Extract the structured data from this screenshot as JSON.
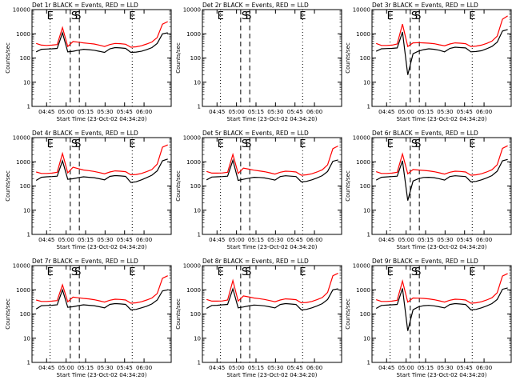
{
  "chart_data": [
    {
      "type": "line",
      "title": "Det 1r BLACK = Events, RED = LLD",
      "xlabel": "Start Time (23-Oct-02 04:34:20)",
      "ylabel": "Counts/sec",
      "yscale": "log",
      "ylim": [
        1,
        10000
      ],
      "y_ticks": [
        "1",
        "10",
        "100",
        "1000",
        "10000"
      ],
      "x_ticks": [
        "04:45",
        "05:00",
        "05:15",
        "05:30",
        "05:45",
        "06:00"
      ],
      "markers": [
        {
          "label": "E",
          "line": "dotted"
        },
        {
          "label": "S",
          "line": "dashed"
        },
        {
          "label": "S",
          "line": "dashed"
        },
        {
          "label": "E",
          "line": "dotted"
        }
      ],
      "series": [
        {
          "color": "#000000",
          "values": [
            180,
            230,
            235,
            240,
            250,
            1100,
            180,
            190,
            210,
            230,
            220,
            210,
            190,
            170,
            240,
            270,
            260,
            250,
            170,
            175,
            190,
            220,
            270,
            400,
            1000,
            1100
          ]
        },
        {
          "color": "#ff0000",
          "values": [
            400,
            340,
            330,
            340,
            360,
            1800,
            300,
            480,
            450,
            420,
            400,
            380,
            340,
            300,
            360,
            400,
            390,
            370,
            280,
            290,
            320,
            380,
            460,
            700,
            2500,
            3200
          ]
        }
      ]
    },
    {
      "type": "line",
      "title": "Det 2r BLACK = Events, RED = LLD",
      "xlabel": "Start Time (23-Oct-02 04:34:20)",
      "ylabel": "Counts/sec",
      "yscale": "log",
      "ylim": [
        1,
        10000
      ],
      "y_ticks": [
        "1",
        "10",
        "100",
        "1000",
        "10000"
      ],
      "x_ticks": [
        "04:45",
        "05:00",
        "05:15",
        "05:30",
        "05:45",
        "06:00"
      ],
      "markers": [
        {
          "label": "E",
          "line": "dotted"
        },
        {
          "label": "S",
          "line": "dashed"
        },
        {
          "label": "S",
          "line": "dashed"
        },
        {
          "label": "E",
          "line": "dotted"
        }
      ],
      "series": []
    },
    {
      "type": "line",
      "title": "Det 3r BLACK = Events, RED = LLD",
      "xlabel": "Start Time (23-Oct-02 04:34:20)",
      "ylabel": "Counts/sec",
      "yscale": "log",
      "ylim": [
        1,
        10000
      ],
      "y_ticks": [
        "1",
        "10",
        "100",
        "1000",
        "10000"
      ],
      "x_ticks": [
        "04:45",
        "05:00",
        "05:15",
        "05:30",
        "05:45",
        "06:00"
      ],
      "markers": [
        {
          "label": "E",
          "line": "dotted"
        },
        {
          "label": "S",
          "line": "dashed"
        },
        {
          "label": "S",
          "line": "dashed"
        },
        {
          "label": "E",
          "line": "dotted"
        }
      ],
      "series": [
        {
          "color": "#000000",
          "values": [
            190,
            240,
            245,
            250,
            260,
            1200,
            20,
            150,
            190,
            220,
            240,
            230,
            210,
            180,
            250,
            280,
            270,
            260,
            180,
            185,
            200,
            240,
            300,
            450,
            1300,
            1500
          ]
        },
        {
          "color": "#ff0000",
          "values": [
            400,
            330,
            330,
            340,
            380,
            2500,
            300,
            420,
            430,
            420,
            410,
            390,
            350,
            320,
            380,
            420,
            410,
            390,
            300,
            310,
            340,
            400,
            500,
            800,
            4000,
            5500
          ]
        }
      ]
    },
    {
      "type": "line",
      "title": "Det 4r BLACK = Events, RED = LLD",
      "xlabel": "Start Time (23-Oct-02 04:34:20)",
      "ylabel": "Counts/sec",
      "yscale": "log",
      "ylim": [
        1,
        10000
      ],
      "y_ticks": [
        "1",
        "10",
        "100",
        "1000",
        "10000"
      ],
      "x_ticks": [
        "04:45",
        "05:00",
        "05:15",
        "05:30",
        "05:45",
        "06:00"
      ],
      "markers": [
        {
          "label": "E",
          "line": "dotted"
        },
        {
          "label": "S",
          "line": "dashed"
        },
        {
          "label": "S",
          "line": "dashed"
        },
        {
          "label": "E",
          "line": "dotted"
        }
      ],
      "series": [
        {
          "color": "#000000",
          "values": [
            170,
            230,
            240,
            245,
            255,
            1100,
            190,
            200,
            220,
            240,
            230,
            220,
            200,
            180,
            250,
            270,
            260,
            250,
            140,
            150,
            180,
            220,
            280,
            420,
            1100,
            1300
          ]
        },
        {
          "color": "#ff0000",
          "values": [
            380,
            330,
            330,
            340,
            370,
            2200,
            350,
            600,
            520,
            460,
            430,
            400,
            360,
            320,
            380,
            420,
            410,
            390,
            290,
            300,
            330,
            390,
            480,
            800,
            4000,
            5000
          ]
        }
      ]
    },
    {
      "type": "line",
      "title": "Det 5r BLACK = Events, RED = LLD",
      "xlabel": "Start Time (23-Oct-02 04:34:20)",
      "ylabel": "Counts/sec",
      "yscale": "log",
      "ylim": [
        1,
        10000
      ],
      "y_ticks": [
        "1",
        "10",
        "100",
        "1000",
        "10000"
      ],
      "x_ticks": [
        "04:45",
        "05:00",
        "05:15",
        "05:30",
        "05:45",
        "06:00"
      ],
      "markers": [
        {
          "label": "E",
          "line": "dotted"
        },
        {
          "label": "S",
          "line": "dashed"
        },
        {
          "label": "S",
          "line": "dashed"
        },
        {
          "label": "E",
          "line": "dotted"
        }
      ],
      "series": [
        {
          "color": "#000000",
          "values": [
            180,
            235,
            240,
            245,
            255,
            1150,
            170,
            190,
            210,
            230,
            225,
            215,
            195,
            175,
            245,
            265,
            255,
            245,
            150,
            155,
            180,
            215,
            270,
            400,
            1050,
            1200
          ]
        },
        {
          "color": "#ff0000",
          "values": [
            400,
            340,
            340,
            345,
            370,
            2000,
            330,
            550,
            500,
            450,
            420,
            390,
            350,
            310,
            370,
            410,
            400,
            380,
            280,
            290,
            320,
            380,
            470,
            750,
            3500,
            4500
          ]
        }
      ]
    },
    {
      "type": "line",
      "title": "Det 6r BLACK = Events, RED = LLD",
      "xlabel": "Start Time (23-Oct-02 04:34:20)",
      "ylabel": "Counts/sec",
      "yscale": "log",
      "ylim": [
        1,
        10000
      ],
      "y_ticks": [
        "1",
        "10",
        "100",
        "1000",
        "10000"
      ],
      "x_ticks": [
        "04:45",
        "05:00",
        "05:15",
        "05:30",
        "05:45",
        "06:00"
      ],
      "markers": [
        {
          "label": "E",
          "line": "dotted"
        },
        {
          "label": "S",
          "line": "dashed"
        },
        {
          "label": "S",
          "line": "dashed"
        },
        {
          "label": "E",
          "line": "dotted"
        }
      ],
      "series": [
        {
          "color": "#000000",
          "values": [
            175,
            230,
            238,
            245,
            255,
            1100,
            25,
            160,
            200,
            225,
            230,
            220,
            200,
            175,
            245,
            265,
            255,
            245,
            150,
            155,
            180,
            215,
            270,
            410,
            1100,
            1250
          ]
        },
        {
          "color": "#ff0000",
          "values": [
            390,
            330,
            330,
            340,
            370,
            2100,
            320,
            480,
            460,
            440,
            420,
            390,
            350,
            310,
            370,
            410,
            400,
            380,
            280,
            290,
            320,
            380,
            470,
            760,
            3600,
            4600
          ]
        }
      ]
    },
    {
      "type": "line",
      "title": "Det 7r BLACK = Events, RED = LLD",
      "xlabel": "Start Time (23-Oct-02 04:34:20)",
      "ylabel": "Counts/sec",
      "yscale": "log",
      "ylim": [
        1,
        10000
      ],
      "y_ticks": [
        "1",
        "10",
        "100",
        "1000",
        "10000"
      ],
      "x_ticks": [
        "04:45",
        "05:00",
        "05:15",
        "05:30",
        "05:45",
        "06:00"
      ],
      "markers": [
        {
          "label": "E",
          "line": "dotted"
        },
        {
          "label": "S",
          "line": "dashed"
        },
        {
          "label": "S",
          "line": "dashed"
        },
        {
          "label": "E",
          "line": "dotted"
        }
      ],
      "series": [
        {
          "color": "#000000",
          "values": [
            160,
            220,
            225,
            230,
            240,
            1000,
            190,
            200,
            220,
            240,
            230,
            220,
            200,
            180,
            250,
            270,
            260,
            250,
            150,
            155,
            180,
            210,
            260,
            380,
            900,
            1000
          ]
        },
        {
          "color": "#ff0000",
          "values": [
            380,
            330,
            330,
            340,
            360,
            1600,
            320,
            500,
            470,
            440,
            420,
            390,
            350,
            310,
            370,
            410,
            400,
            380,
            280,
            290,
            320,
            380,
            460,
            700,
            3000,
            3800
          ]
        }
      ]
    },
    {
      "type": "line",
      "title": "Det 8r BLACK = Events, RED = LLD",
      "xlabel": "Start Time (23-Oct-02 04:34:20)",
      "ylabel": "Counts/sec",
      "yscale": "log",
      "ylim": [
        1,
        10000
      ],
      "y_ticks": [
        "1",
        "10",
        "100",
        "1000",
        "10000"
      ],
      "x_ticks": [
        "04:45",
        "05:00",
        "05:15",
        "05:30",
        "05:45",
        "06:00"
      ],
      "markers": [
        {
          "label": "E",
          "line": "dotted"
        },
        {
          "label": "S",
          "line": "dashed"
        },
        {
          "label": "S",
          "line": "dashed"
        },
        {
          "label": "E",
          "line": "dotted"
        }
      ],
      "series": [
        {
          "color": "#000000",
          "values": [
            170,
            225,
            230,
            240,
            250,
            1100,
            180,
            195,
            215,
            235,
            228,
            218,
            198,
            178,
            248,
            268,
            258,
            248,
            150,
            155,
            180,
            215,
            270,
            400,
            1000,
            1100
          ]
        },
        {
          "color": "#ff0000",
          "values": [
            400,
            340,
            340,
            345,
            380,
            2400,
            340,
            560,
            510,
            460,
            430,
            400,
            360,
            320,
            380,
            420,
            410,
            390,
            290,
            300,
            330,
            390,
            480,
            780,
            3800,
            4800
          ]
        }
      ]
    },
    {
      "type": "line",
      "title": "Det 9r BLACK = Events, RED = LLD",
      "xlabel": "Start Time (23-Oct-02 04:34:20)",
      "ylabel": "Counts/sec",
      "yscale": "log",
      "ylim": [
        1,
        10000
      ],
      "y_ticks": [
        "1",
        "10",
        "100",
        "1000",
        "10000"
      ],
      "x_ticks": [
        "04:45",
        "05:00",
        "05:15",
        "05:30",
        "05:45",
        "06:00"
      ],
      "markers": [
        {
          "label": "E",
          "line": "dotted"
        },
        {
          "label": "S",
          "line": "dashed"
        },
        {
          "label": "S",
          "line": "dashed"
        },
        {
          "label": "E",
          "line": "dotted"
        }
      ],
      "series": [
        {
          "color": "#000000",
          "values": [
            170,
            225,
            232,
            240,
            250,
            1150,
            20,
            150,
            195,
            220,
            228,
            218,
            198,
            178,
            248,
            268,
            258,
            248,
            150,
            155,
            180,
            215,
            270,
            400,
            1050,
            1200
          ]
        },
        {
          "color": "#ff0000",
          "values": [
            390,
            330,
            330,
            340,
            370,
            2300,
            310,
            460,
            450,
            440,
            420,
            390,
            350,
            310,
            370,
            410,
            400,
            380,
            280,
            290,
            320,
            380,
            470,
            760,
            3700,
            4700
          ]
        }
      ]
    }
  ]
}
